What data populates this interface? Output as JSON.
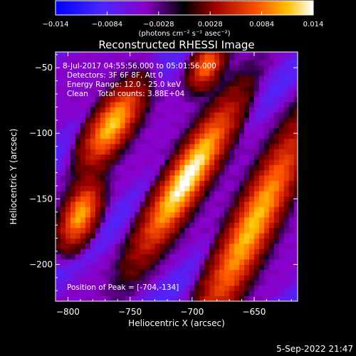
{
  "chart_data": {
    "type": "heatmap",
    "title": "Reconstructed RHESSI Image",
    "xlabel": "Heliocentric X (arcsec)",
    "ylabel": "Heliocentric Y (arcsec)",
    "xlim": [
      -810,
      -615
    ],
    "ylim": [
      -228,
      -38
    ],
    "x_ticks": [
      -800,
      -750,
      -700,
      -650
    ],
    "x_tick_labels": [
      "−800",
      "−750",
      "−700",
      "−650"
    ],
    "y_ticks": [
      -200,
      -150,
      -100,
      -50
    ],
    "y_tick_labels": [
      "−200",
      "−150",
      "−100",
      "−50"
    ],
    "colorbar": {
      "range": [
        -0.014,
        0.014
      ],
      "ticks": [
        -0.014,
        -0.0084,
        -0.0028,
        0.0028,
        0.0084,
        0.014
      ],
      "tick_labels": [
        "−0.014",
        "−0.0084",
        "−0.0028",
        "0.0028",
        "0.0084",
        "0.014"
      ],
      "units": "(photons cm⁻² s⁻¹ asec⁻²)"
    },
    "annotations": [
      "8-Jul-2017 04:55:56.000 to 05:01:56.000",
      "Detectors: 3F 6F 8F, Att 0",
      "Energy Range: 12.0 - 25.0 keV",
      "Clean    Total counts: 3.88E+04"
    ],
    "peak_label": "Position of Peak = [-704,-134]",
    "peak": [
      -704,
      -134
    ],
    "sources": [
      {
        "x": -704,
        "y": -134,
        "amp": 0.014,
        "sx": 9,
        "sy": 42,
        "angle": 33
      },
      {
        "x": -651,
        "y": -170,
        "amp": 0.0112,
        "sx": 10,
        "sy": 55,
        "angle": 28
      },
      {
        "x": -764,
        "y": -93,
        "amp": 0.0115,
        "sx": 9,
        "sy": 22,
        "angle": 35
      },
      {
        "x": -790,
        "y": -162,
        "amp": 0.0105,
        "sx": 8,
        "sy": 16,
        "angle": 25
      },
      {
        "x": -688,
        "y": -48,
        "amp": 0.0085,
        "sx": 7,
        "sy": 12,
        "angle": 30
      }
    ]
  },
  "footer": {
    "timestamp": "5-Sep-2022 21:47"
  }
}
